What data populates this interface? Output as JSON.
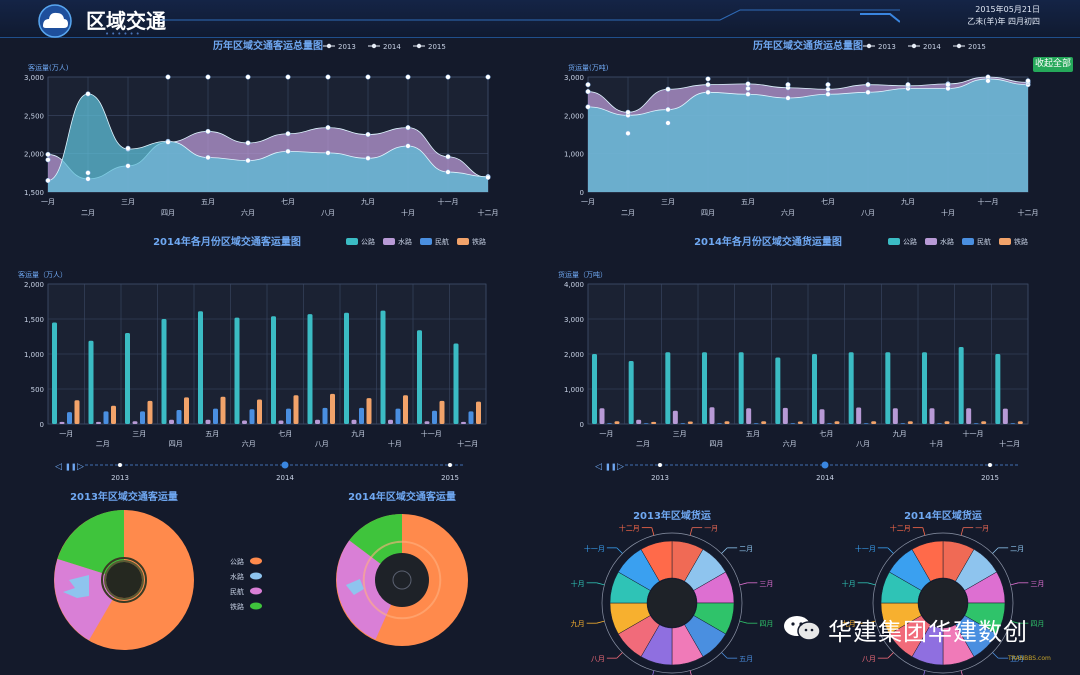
{
  "header": {
    "title": "区域交通",
    "date": "2015年05月21日",
    "lunar": "乙未(羊)年 四月初四",
    "collapse_label": "收起全部"
  },
  "months": [
    "一月",
    "二月",
    "三月",
    "四月",
    "五月",
    "六月",
    "七月",
    "八月",
    "九月",
    "十月",
    "十一月",
    "十二月"
  ],
  "timeline": {
    "years": [
      "2013",
      "2014",
      "2015"
    ],
    "active": "2014"
  },
  "charts": {
    "passenger_history": {
      "type": "area",
      "title": "历年区域交通客运总量图",
      "ylabel": "客运量(万人)",
      "ylim": [
        1500,
        3000
      ],
      "ticks": [
        "1,500",
        "2,000",
        "2,500",
        "3,000"
      ],
      "legend": [
        "2013",
        "2014",
        "2015"
      ],
      "series": [
        {
          "name": "2013",
          "values": [
            1650,
            2780,
            2060,
            2160,
            1950,
            1910,
            2030,
            2010,
            1940,
            2100,
            1760,
            1700
          ]
        },
        {
          "name": "2014",
          "values": [
            1990,
            1670,
            1840,
            2150,
            2290,
            2140,
            2260,
            2340,
            2250,
            2340,
            1960,
            1690
          ]
        },
        {
          "name": "2015",
          "values": [
            1920,
            1750,
            2070,
            3000,
            3000,
            3000,
            3000,
            3000,
            3000,
            3000,
            3000,
            3000
          ]
        }
      ]
    },
    "cargo_history": {
      "type": "area",
      "title": "历年区域交通货运总量图",
      "ylabel": "货运量(万吨)",
      "ylim": [
        0,
        3000
      ],
      "ticks": [
        "0",
        "1,000",
        "2,000",
        "3,000"
      ],
      "legend": [
        "2013",
        "2014",
        "2015"
      ],
      "series": [
        {
          "name": "2013",
          "values": [
            2220,
            2000,
            2150,
            2600,
            2550,
            2450,
            2550,
            2600,
            2700,
            2700,
            2950,
            2800
          ]
        },
        {
          "name": "2014",
          "values": [
            2620,
            2080,
            2680,
            2800,
            2820,
            2720,
            2680,
            2800,
            2770,
            2820,
            3000,
            2860
          ]
        },
        {
          "name": "2015",
          "values": [
            2800,
            1530,
            1800,
            2950,
            2700,
            2800,
            2800,
            2800,
            2800,
            2800,
            2900,
            2900
          ]
        }
      ]
    },
    "passenger_bars": {
      "type": "bar",
      "title": "2014年各月份区域交通客运量图",
      "ylabel": "客运量（万人）",
      "ylim": [
        0,
        2000
      ],
      "ticks": [
        "0",
        "500",
        "1,000",
        "1,500",
        "2,000"
      ],
      "legend": [
        "公路",
        "水路",
        "民航",
        "铁路"
      ],
      "series": [
        {
          "name": "公路",
          "values": [
            1450,
            1190,
            1300,
            1500,
            1610,
            1520,
            1540,
            1570,
            1590,
            1620,
            1340,
            1150
          ]
        },
        {
          "name": "水路",
          "values": [
            30,
            30,
            40,
            60,
            60,
            50,
            50,
            60,
            60,
            60,
            40,
            30
          ]
        },
        {
          "name": "民航",
          "values": [
            170,
            180,
            180,
            200,
            220,
            210,
            220,
            230,
            230,
            220,
            190,
            180
          ]
        },
        {
          "name": "铁路",
          "values": [
            340,
            260,
            330,
            380,
            390,
            350,
            410,
            430,
            370,
            410,
            330,
            320
          ]
        }
      ]
    },
    "cargo_bars": {
      "type": "bar",
      "title": "2014年各月份区域交通货运量图",
      "ylabel": "货运量（万吨）",
      "ylim": [
        0,
        4000
      ],
      "ticks": [
        "0",
        "1,000",
        "2,000",
        "3,000",
        "4,000"
      ],
      "legend": [
        "公路",
        "水路",
        "民航",
        "铁路"
      ],
      "series": [
        {
          "name": "公路",
          "values": [
            2000,
            1800,
            2050,
            2050,
            2050,
            1900,
            2000,
            2050,
            2050,
            2050,
            2200,
            2000
          ]
        },
        {
          "name": "水路",
          "values": [
            450,
            120,
            380,
            480,
            450,
            460,
            420,
            470,
            450,
            450,
            450,
            440
          ]
        },
        {
          "name": "民航",
          "values": [
            20,
            20,
            20,
            20,
            20,
            20,
            20,
            20,
            20,
            20,
            20,
            20
          ]
        },
        {
          "name": "铁路",
          "values": [
            80,
            60,
            70,
            80,
            80,
            70,
            80,
            80,
            80,
            80,
            80,
            80
          ]
        }
      ]
    },
    "passenger_2013": {
      "type": "pie",
      "title": "2013年区域交通客运量"
    },
    "passenger_2014": {
      "type": "pie",
      "title": "2014年区域交通客运量"
    },
    "cargo_2013": {
      "type": "pie",
      "title": "2013年区域货运"
    },
    "cargo_2014": {
      "type": "pie",
      "title": "2014年区域货运"
    },
    "mode_legend": [
      "公路",
      "水路",
      "民航",
      "铁路"
    ]
  },
  "colors": {
    "gonglu": "#3bbcc4",
    "shuilu": "#b89ad6",
    "minhang": "#4a8fe0",
    "tielu": "#f2a36a",
    "y2013": "#5fbfd8",
    "y2014": "#b99ad6",
    "pie_orange": "#ff8a4c",
    "pie_green": "#3fc43c",
    "pie_pink": "#d97fd6",
    "pie_blue": "#8ec4ee"
  },
  "watermark": {
    "text": "华建集团华建数创",
    "site": "TRANBBS.com"
  }
}
